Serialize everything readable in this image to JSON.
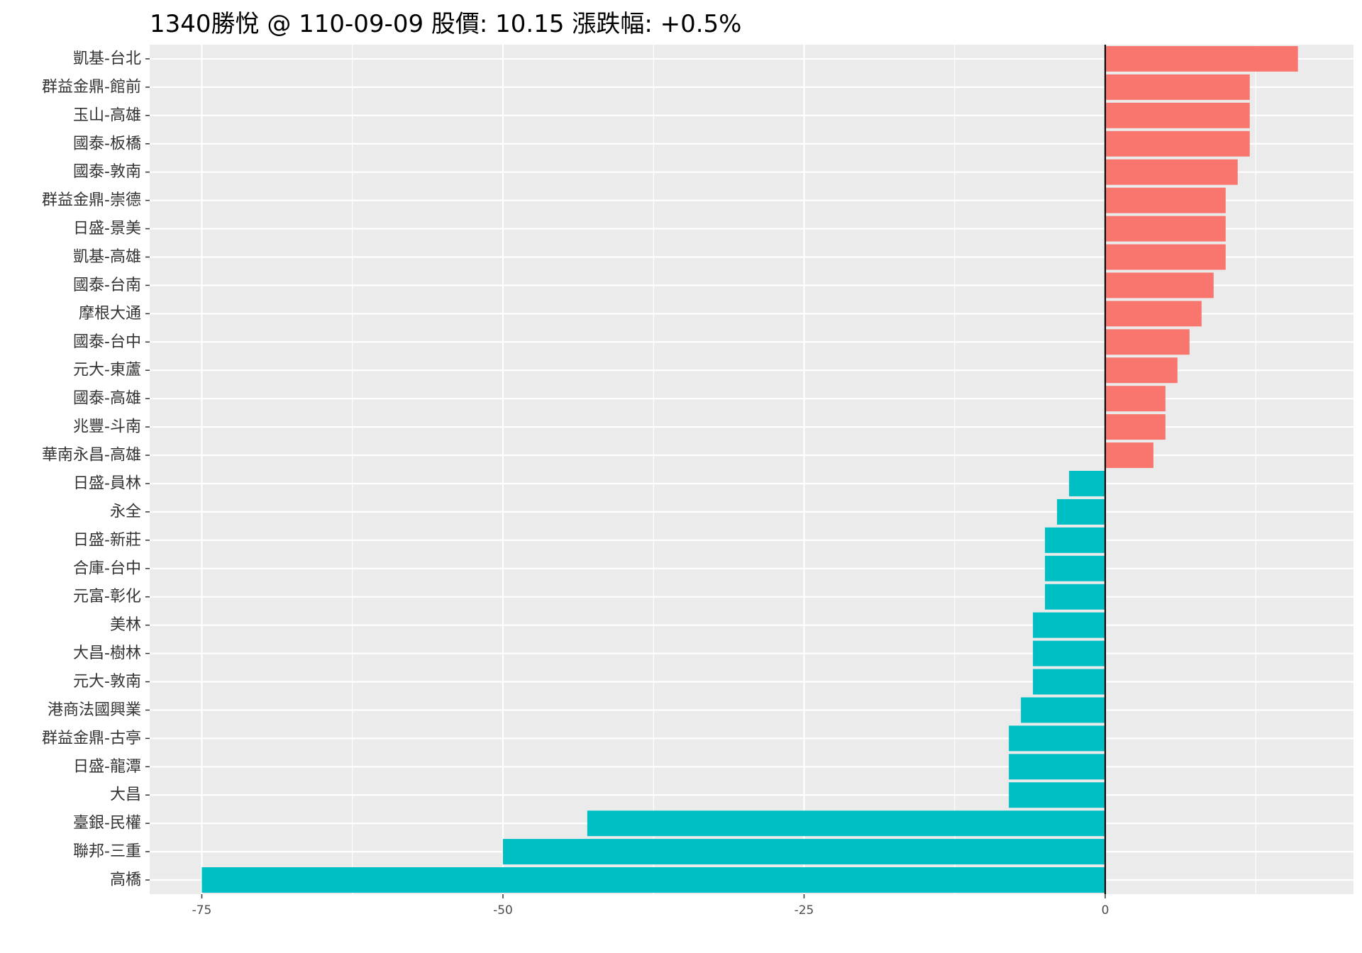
{
  "chart_data": {
    "type": "bar",
    "orientation": "horizontal",
    "title": "1340勝悅 @ 110-09-09 股價:  10.15 漲跌幅:  +0.5%",
    "xlabel": "",
    "ylabel": "",
    "xlim": [
      -80,
      20
    ],
    "x_ticks": [
      -75,
      -50,
      -25,
      0
    ],
    "x_tick_labels": [
      "-75",
      "-50",
      "-25",
      "0"
    ],
    "grid": true,
    "background": "#EBEBEB",
    "positive_color": "#F8766D",
    "negative_color": "#00BFC4",
    "categories": [
      "凱基-台北",
      "群益金鼎-館前",
      "玉山-高雄",
      "國泰-板橋",
      "國泰-敦南",
      "群益金鼎-崇德",
      "日盛-景美",
      "凱基-高雄",
      "國泰-台南",
      "摩根大通",
      "國泰-台中",
      "元大-東蘆",
      "國泰-高雄",
      "兆豐-斗南",
      "華南永昌-高雄",
      "日盛-員林",
      "永全",
      "日盛-新莊",
      "合庫-台中",
      "元富-彰化",
      "美林",
      "大昌-樹林",
      "元大-敦南",
      "港商法國興業",
      "群益金鼎-古亭",
      "日盛-龍潭",
      "大昌",
      "臺銀-民權",
      "聯邦-三重",
      "高橋"
    ],
    "values": [
      16,
      12,
      12,
      12,
      11,
      10,
      10,
      10,
      9,
      8,
      7,
      6,
      5,
      5,
      4,
      -3,
      -4,
      -5,
      -5,
      -5,
      -6,
      -6,
      -6,
      -7,
      -8,
      -8,
      -8,
      -43,
      -50,
      -75
    ]
  }
}
